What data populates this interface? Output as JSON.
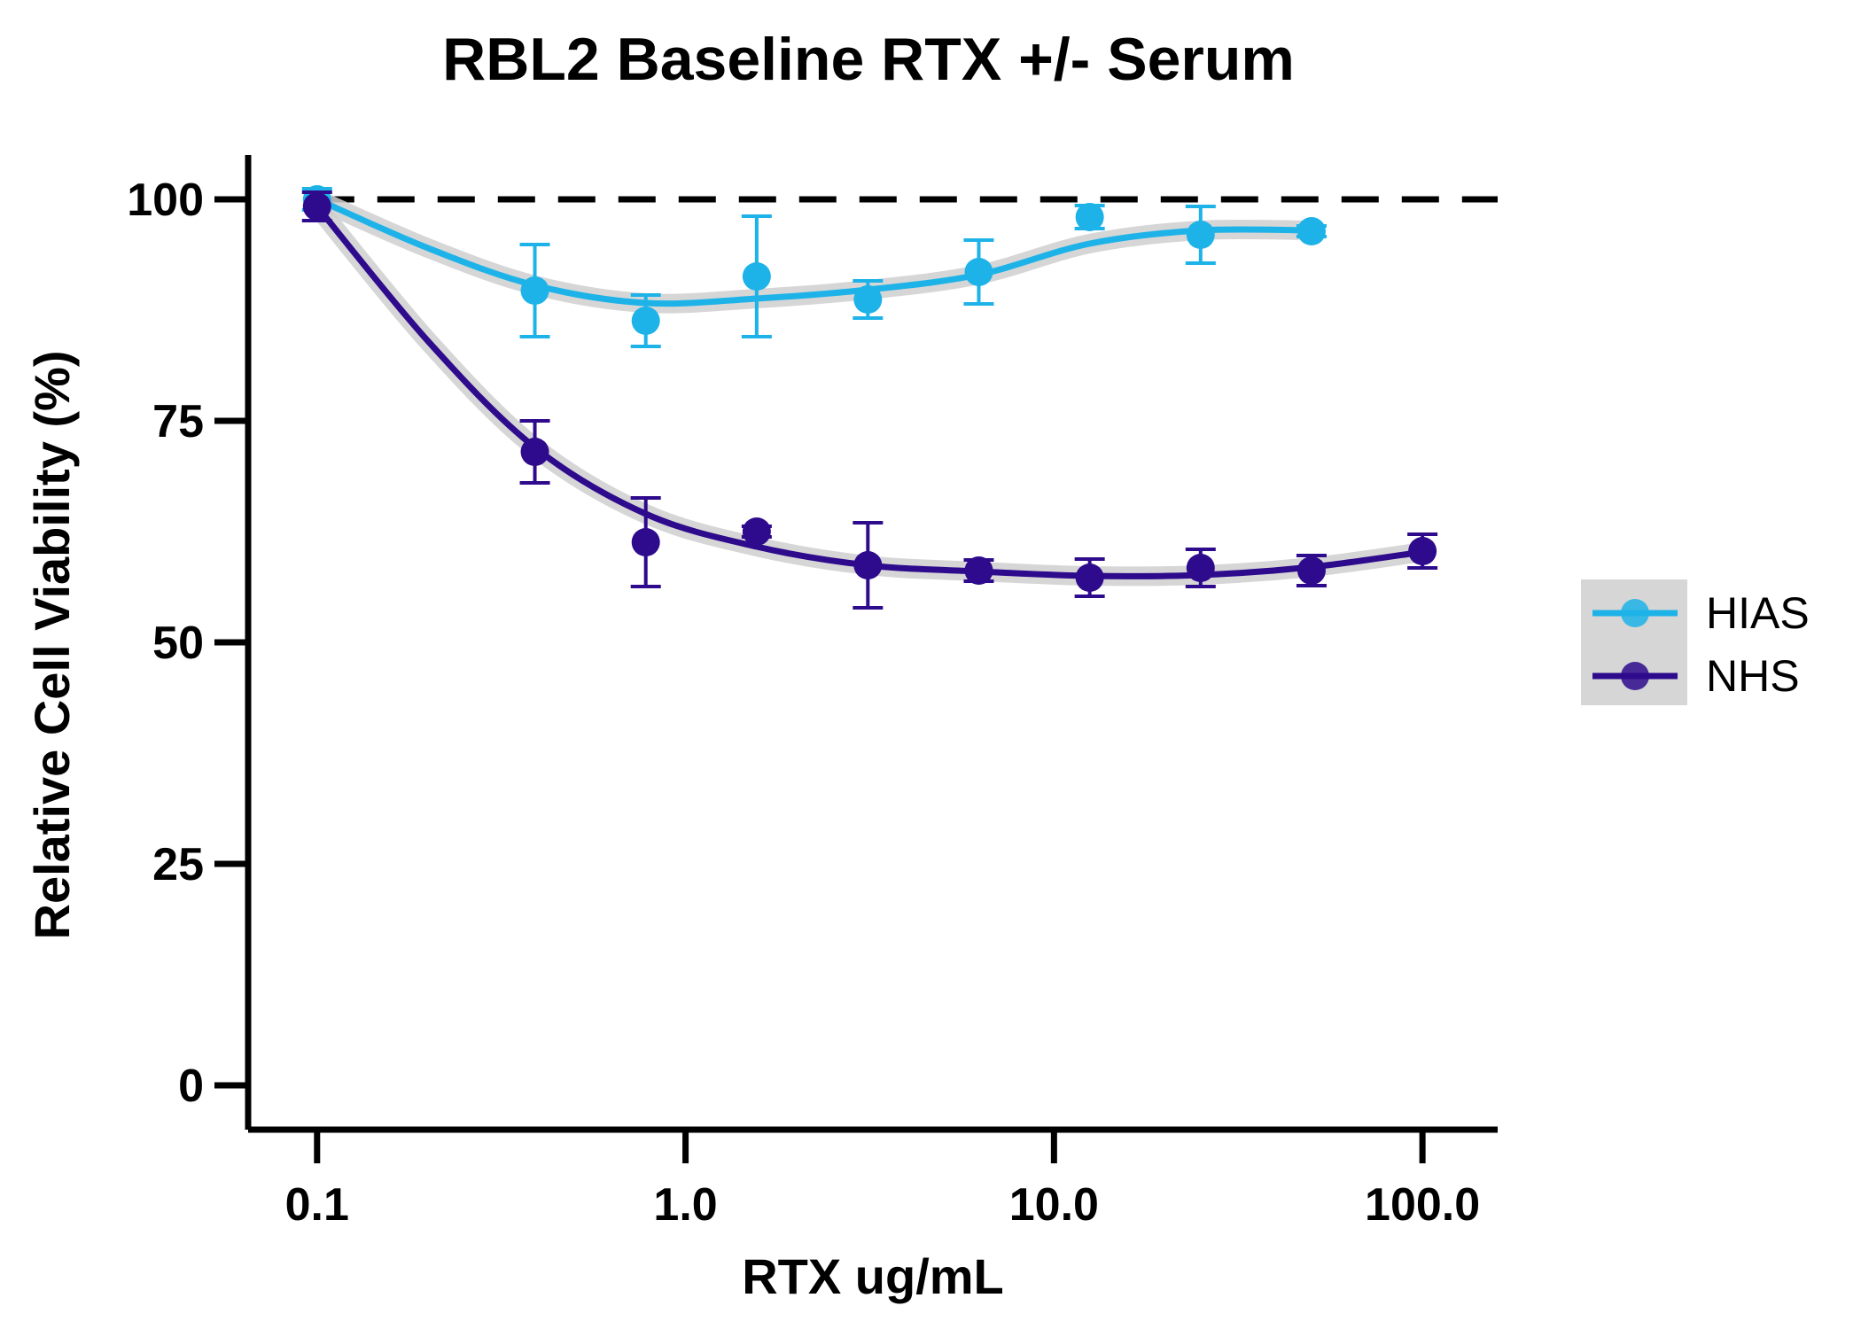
{
  "chart_data": {
    "type": "scatter",
    "title": "RBL2 Baseline RTX +/- Serum",
    "xlabel": "RTX ug/mL",
    "ylabel": "Relative Cell Viability (%)",
    "x_scale": "log",
    "xlim": [
      0.065,
      160
    ],
    "ylim": [
      -5,
      105
    ],
    "x_ticks": [
      0.1,
      1.0,
      10.0,
      100.0
    ],
    "x_tick_labels": [
      "0.1",
      "1.0",
      "10.0",
      "100.0"
    ],
    "y_ticks": [
      0,
      25,
      50,
      75,
      100
    ],
    "y_tick_labels": [
      "0",
      "25",
      "50",
      "75",
      "100"
    ],
    "reference_line": {
      "y": 100,
      "style": "dashed"
    },
    "grid": false,
    "legend_position": "right",
    "series": [
      {
        "name": "HIAS",
        "color": "#1eb3e8",
        "x": [
          0.1,
          0.39,
          0.78,
          1.56,
          3.125,
          6.25,
          12.5,
          25,
          50
        ],
        "y": [
          100,
          89.7,
          86.3,
          91.3,
          88.7,
          91.8,
          98,
          96,
          96.4
        ],
        "error": [
          1.2,
          5.2,
          2.9,
          6.8,
          2.1,
          3.6,
          1.3,
          3.2,
          0.6
        ],
        "fit": [
          [
            0.1,
            100
          ],
          [
            0.2,
            94.5
          ],
          [
            0.39,
            90.3
          ],
          [
            0.78,
            88.3
          ],
          [
            1.56,
            88.8
          ],
          [
            3.125,
            89.8
          ],
          [
            6.25,
            91.5
          ],
          [
            12.5,
            95
          ],
          [
            25,
            96.5
          ],
          [
            50,
            96.5
          ]
        ]
      },
      {
        "name": "NHS",
        "color": "#2e0a8c",
        "x": [
          0.1,
          0.39,
          0.78,
          1.56,
          3.125,
          6.25,
          12.5,
          25,
          50,
          100
        ],
        "y": [
          99.2,
          71.5,
          61.3,
          62.5,
          58.7,
          58.1,
          57.3,
          58.4,
          58.1,
          60.3
        ],
        "error": [
          1.6,
          3.5,
          5.0,
          0.6,
          4.8,
          1.2,
          2.1,
          2.1,
          1.7,
          1.9
        ],
        "fit": [
          [
            0.1,
            99.2
          ],
          [
            0.2,
            84
          ],
          [
            0.39,
            72
          ],
          [
            0.78,
            64.5
          ],
          [
            1.56,
            60.8
          ],
          [
            3.125,
            58.7
          ],
          [
            6.25,
            58
          ],
          [
            12.5,
            57.5
          ],
          [
            25,
            57.6
          ],
          [
            50,
            58.5
          ],
          [
            100,
            60.2
          ]
        ]
      }
    ]
  }
}
